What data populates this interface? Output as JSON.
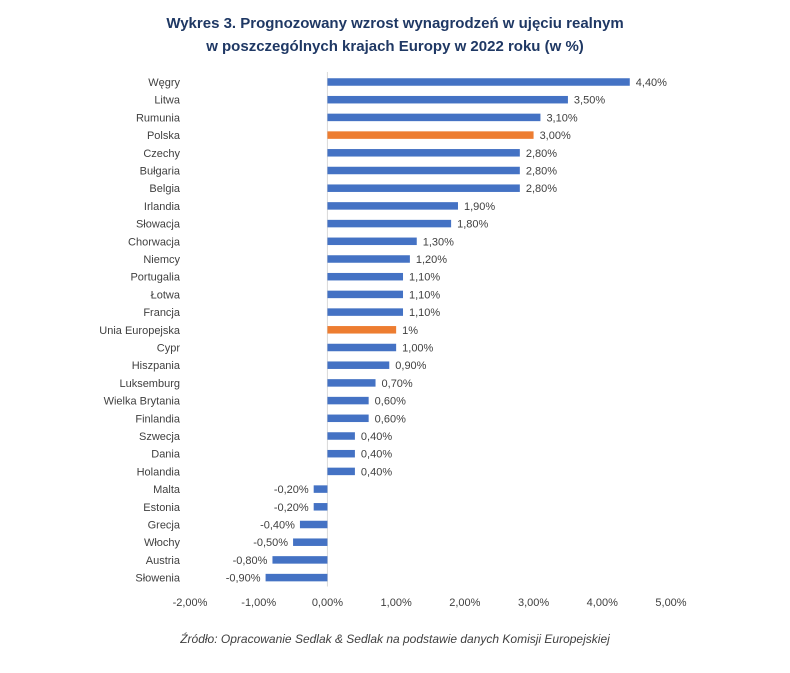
{
  "chart_data": {
    "type": "bar",
    "orientation": "horizontal",
    "title_line1": "Wykres 3. Prognozowany wzrost wynagrodzeń w ujęciu realnym",
    "title_line2": "w poszczególnych krajach Europy w 2022 roku (w %)",
    "categories": [
      "Węgry",
      "Litwa",
      "Rumunia",
      "Polska",
      "Czechy",
      "Bułgaria",
      "Belgia",
      "Irlandia",
      "Słowacja",
      "Chorwacja",
      "Niemcy",
      "Portugalia",
      "Łotwa",
      "Francja",
      "Unia Europejska",
      "Cypr",
      "Hiszpania",
      "Luksemburg",
      "Wielka Brytania",
      "Finlandia",
      "Szwecja",
      "Dania",
      "Holandia",
      "Malta",
      "Estonia",
      "Grecja",
      "Włochy",
      "Austria",
      "Słowenia"
    ],
    "values": [
      4.4,
      3.5,
      3.1,
      3.0,
      2.8,
      2.8,
      2.8,
      1.9,
      1.8,
      1.3,
      1.2,
      1.1,
      1.1,
      1.1,
      1.0,
      1.0,
      0.9,
      0.7,
      0.6,
      0.6,
      0.4,
      0.4,
      0.4,
      -0.2,
      -0.2,
      -0.4,
      -0.5,
      -0.8,
      -0.9
    ],
    "value_labels": [
      "4,40%",
      "3,50%",
      "3,10%",
      "3,00%",
      "2,80%",
      "2,80%",
      "2,80%",
      "1,90%",
      "1,80%",
      "1,30%",
      "1,20%",
      "1,10%",
      "1,10%",
      "1,10%",
      "1%",
      "1,00%",
      "0,90%",
      "0,70%",
      "0,60%",
      "0,60%",
      "0,40%",
      "0,40%",
      "0,40%",
      "-0,20%",
      "-0,20%",
      "-0,40%",
      "-0,50%",
      "-0,80%",
      "-0,90%"
    ],
    "highlighted": [
      "Polska",
      "Unia Europejska"
    ],
    "xlim": [
      -2,
      5
    ],
    "x_ticks": [
      -2,
      -1,
      0,
      1,
      2,
      3,
      4,
      5
    ],
    "x_tick_labels": [
      "-2,00%",
      "-1,00%",
      "0,00%",
      "1,00%",
      "2,00%",
      "3,00%",
      "4,00%",
      "5,00%"
    ],
    "colors": {
      "default": "#4472c4",
      "highlight": "#ed7d31",
      "axis": "#d9d9d9",
      "title": "#1f3864",
      "text": "#404040"
    }
  },
  "source": "Źródło: Opracowanie Sedlak & Sedlak na podstawie danych Komisji Europejskiej"
}
